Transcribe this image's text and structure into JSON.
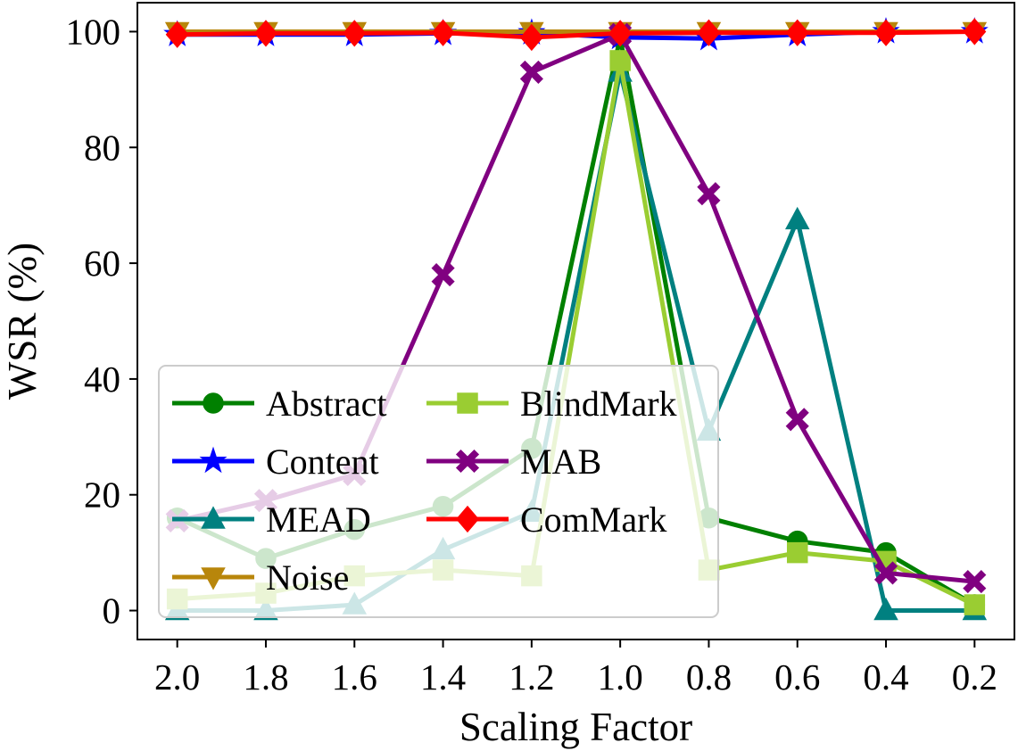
{
  "chart_data": {
    "type": "line",
    "xlabel": "Scaling Factor",
    "ylabel": "WSR (%)",
    "x": [
      2.0,
      1.8,
      1.6,
      1.4,
      1.2,
      1.0,
      0.8,
      0.6,
      0.4,
      0.2
    ],
    "x_tick_labels": [
      "2.0",
      "1.8",
      "1.6",
      "1.4",
      "1.2",
      "1.0",
      "0.8",
      "0.6",
      "0.4",
      "0.2"
    ],
    "y_ticks": [
      0,
      20,
      40,
      60,
      80,
      100
    ],
    "y_tick_labels": [
      "0",
      "20",
      "40",
      "60",
      "80",
      "100"
    ],
    "xlim": [
      2.09,
      0.11
    ],
    "ylim": [
      -5,
      105
    ],
    "grid": false,
    "legend_position": "lower-left",
    "series": [
      {
        "name": "Abstract",
        "color": "#008000",
        "marker": "circle",
        "values": [
          16,
          9,
          14,
          18,
          28,
          99,
          16,
          12,
          10,
          1
        ]
      },
      {
        "name": "Content",
        "color": "#0000ff",
        "marker": "star",
        "values": [
          99.5,
          99.5,
          99.5,
          99.7,
          99.8,
          99,
          98.8,
          99.5,
          100,
          100
        ]
      },
      {
        "name": "MEAD",
        "color": "#008080",
        "marker": "triangle-up",
        "values": [
          0,
          0,
          1,
          10.5,
          17,
          93,
          31,
          67.5,
          0,
          0
        ]
      },
      {
        "name": "Noise",
        "color": "#b8860b",
        "marker": "triangle-down",
        "values": [
          100,
          100,
          100,
          100,
          100,
          100,
          100,
          100,
          100,
          100
        ]
      },
      {
        "name": "BlindMark",
        "color": "#9acd32",
        "marker": "square",
        "values": [
          2,
          3,
          6,
          7,
          6,
          95,
          7,
          10,
          8.5,
          1
        ]
      },
      {
        "name": "MAB",
        "color": "#800080",
        "marker": "x",
        "values": [
          15.5,
          19,
          23.5,
          58,
          93,
          99.5,
          72,
          33,
          6.5,
          5
        ]
      },
      {
        "name": "ComMark",
        "color": "#ff0000",
        "marker": "diamond",
        "values": [
          99.5,
          99.7,
          99.7,
          99.8,
          99,
          99.7,
          99.8,
          99.8,
          99.8,
          100
        ]
      }
    ]
  }
}
